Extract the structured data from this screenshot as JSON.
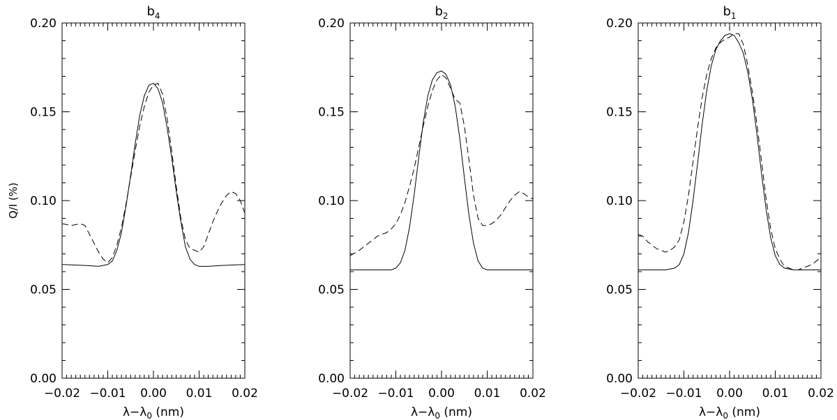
{
  "chart_data": [
    {
      "type": "line",
      "title_base": "b",
      "title_sub": "4",
      "xlabel_base": "λ−λ",
      "xlabel_sub": "0",
      "xlabel_unit": " (nm)",
      "ylabel": "Q/I (%)",
      "xlim": [
        -0.02,
        0.02
      ],
      "ylim": [
        0.0,
        0.2
      ],
      "x_ticks": [
        "−0.02",
        "−0.01",
        "0.00",
        "0.01",
        "0.02"
      ],
      "y_ticks": [
        "0.00",
        "0.05",
        "0.10",
        "0.15",
        "0.20"
      ],
      "grid": false,
      "series": [
        {
          "style": "solid",
          "x": [
            -0.02,
            -0.015,
            -0.012,
            -0.01,
            -0.009,
            -0.008,
            -0.007,
            -0.006,
            -0.005,
            -0.004,
            -0.003,
            -0.002,
            -0.001,
            0.0,
            0.001,
            0.002,
            0.003,
            0.004,
            0.005,
            0.006,
            0.007,
            0.008,
            0.009,
            0.01,
            0.012,
            0.015,
            0.02
          ],
          "y": [
            0.064,
            0.0635,
            0.063,
            0.064,
            0.066,
            0.072,
            0.082,
            0.097,
            0.114,
            0.132,
            0.148,
            0.159,
            0.165,
            0.166,
            0.163,
            0.155,
            0.141,
            0.124,
            0.105,
            0.088,
            0.074,
            0.067,
            0.064,
            0.063,
            0.063,
            0.0635,
            0.064
          ]
        },
        {
          "style": "dashed",
          "x": [
            -0.02,
            -0.018,
            -0.016,
            -0.015,
            -0.014,
            -0.013,
            -0.012,
            -0.011,
            -0.01,
            -0.009,
            -0.008,
            -0.007,
            -0.006,
            -0.005,
            -0.004,
            -0.003,
            -0.002,
            -0.001,
            0.0,
            0.001,
            0.002,
            0.003,
            0.004,
            0.005,
            0.006,
            0.007,
            0.008,
            0.009,
            0.01,
            0.011,
            0.012,
            0.013,
            0.014,
            0.015,
            0.016,
            0.017,
            0.018,
            0.019,
            0.02
          ],
          "y": [
            0.087,
            0.086,
            0.087,
            0.086,
            0.081,
            0.076,
            0.071,
            0.067,
            0.065,
            0.068,
            0.075,
            0.085,
            0.098,
            0.113,
            0.128,
            0.142,
            0.153,
            0.161,
            0.165,
            0.166,
            0.16,
            0.146,
            0.128,
            0.108,
            0.09,
            0.078,
            0.073,
            0.072,
            0.071,
            0.074,
            0.081,
            0.088,
            0.094,
            0.099,
            0.103,
            0.105,
            0.104,
            0.1,
            0.093
          ]
        }
      ]
    },
    {
      "type": "line",
      "title_base": "b",
      "title_sub": "2",
      "xlabel_base": "λ−λ",
      "xlabel_sub": "0",
      "xlabel_unit": " (nm)",
      "ylabel": "",
      "xlim": [
        -0.02,
        0.02
      ],
      "ylim": [
        0.0,
        0.2
      ],
      "x_ticks": [
        "−0.02",
        "−0.01",
        "0.00",
        "0.01",
        "0.02"
      ],
      "y_ticks": [
        "0.00",
        "0.05",
        "0.10",
        "0.15",
        "0.20"
      ],
      "grid": false,
      "series": [
        {
          "style": "solid",
          "x": [
            -0.02,
            -0.014,
            -0.011,
            -0.01,
            -0.009,
            -0.008,
            -0.007,
            -0.006,
            -0.005,
            -0.004,
            -0.003,
            -0.002,
            -0.001,
            0.0,
            0.001,
            0.002,
            0.003,
            0.004,
            0.005,
            0.006,
            0.007,
            0.008,
            0.009,
            0.01,
            0.011,
            0.014,
            0.02
          ],
          "y": [
            0.061,
            0.061,
            0.061,
            0.062,
            0.065,
            0.072,
            0.085,
            0.103,
            0.124,
            0.144,
            0.159,
            0.168,
            0.172,
            0.173,
            0.171,
            0.165,
            0.153,
            0.135,
            0.113,
            0.092,
            0.076,
            0.066,
            0.062,
            0.061,
            0.061,
            0.061,
            0.061
          ]
        },
        {
          "style": "dashed",
          "x": [
            -0.02,
            -0.018,
            -0.016,
            -0.014,
            -0.012,
            -0.011,
            -0.01,
            -0.009,
            -0.008,
            -0.007,
            -0.006,
            -0.005,
            -0.004,
            -0.003,
            -0.002,
            -0.001,
            0.0,
            0.001,
            0.002,
            0.003,
            0.004,
            0.005,
            0.006,
            0.007,
            0.008,
            0.009,
            0.01,
            0.011,
            0.012,
            0.013,
            0.014,
            0.015,
            0.016,
            0.017,
            0.018,
            0.019,
            0.02
          ],
          "y": [
            0.069,
            0.072,
            0.076,
            0.08,
            0.082,
            0.084,
            0.087,
            0.092,
            0.099,
            0.108,
            0.118,
            0.13,
            0.142,
            0.153,
            0.162,
            0.168,
            0.171,
            0.169,
            0.163,
            0.157,
            0.155,
            0.142,
            0.123,
            0.103,
            0.09,
            0.086,
            0.086,
            0.087,
            0.089,
            0.092,
            0.096,
            0.1,
            0.103,
            0.105,
            0.104,
            0.102,
            0.101
          ]
        }
      ]
    },
    {
      "type": "line",
      "title_base": "b",
      "title_sub": "1",
      "xlabel_base": "λ−λ",
      "xlabel_sub": "0",
      "xlabel_unit": " (nm)",
      "ylabel": "",
      "xlim": [
        -0.02,
        0.02
      ],
      "ylim": [
        0.0,
        0.2
      ],
      "x_ticks": [
        "−0.02",
        "−0.01",
        "0.00",
        "0.01",
        "0.02"
      ],
      "y_ticks": [
        "0.00",
        "0.05",
        "0.10",
        "0.15",
        "0.20"
      ],
      "grid": false,
      "series": [
        {
          "style": "solid",
          "x": [
            -0.02,
            -0.014,
            -0.012,
            -0.011,
            -0.01,
            -0.009,
            -0.008,
            -0.007,
            -0.006,
            -0.005,
            -0.004,
            -0.003,
            -0.002,
            -0.001,
            0.0,
            0.001,
            0.002,
            0.003,
            0.004,
            0.005,
            0.006,
            0.007,
            0.008,
            0.009,
            0.01,
            0.011,
            0.012,
            0.014,
            0.02
          ],
          "y": [
            0.061,
            0.061,
            0.062,
            0.064,
            0.07,
            0.082,
            0.1,
            0.121,
            0.143,
            0.162,
            0.176,
            0.185,
            0.19,
            0.193,
            0.194,
            0.193,
            0.189,
            0.183,
            0.172,
            0.157,
            0.137,
            0.115,
            0.095,
            0.079,
            0.069,
            0.064,
            0.062,
            0.061,
            0.061
          ]
        },
        {
          "style": "dashed",
          "x": [
            -0.02,
            -0.019,
            -0.018,
            -0.017,
            -0.016,
            -0.015,
            -0.014,
            -0.013,
            -0.012,
            -0.011,
            -0.01,
            -0.009,
            -0.008,
            -0.007,
            -0.006,
            -0.005,
            -0.004,
            -0.003,
            -0.002,
            -0.001,
            0.0,
            0.001,
            0.002,
            0.003,
            0.004,
            0.005,
            0.006,
            0.007,
            0.008,
            0.009,
            0.01,
            0.011,
            0.012,
            0.013,
            0.014,
            0.015,
            0.016,
            0.017,
            0.018,
            0.019,
            0.02
          ],
          "y": [
            0.081,
            0.08,
            0.077,
            0.075,
            0.073,
            0.072,
            0.071,
            0.072,
            0.074,
            0.078,
            0.088,
            0.103,
            0.122,
            0.141,
            0.158,
            0.171,
            0.18,
            0.186,
            0.189,
            0.191,
            0.192,
            0.194,
            0.194,
            0.188,
            0.176,
            0.161,
            0.143,
            0.122,
            0.101,
            0.084,
            0.073,
            0.067,
            0.063,
            0.062,
            0.061,
            0.061,
            0.062,
            0.063,
            0.064,
            0.066,
            0.068
          ]
        }
      ]
    }
  ]
}
